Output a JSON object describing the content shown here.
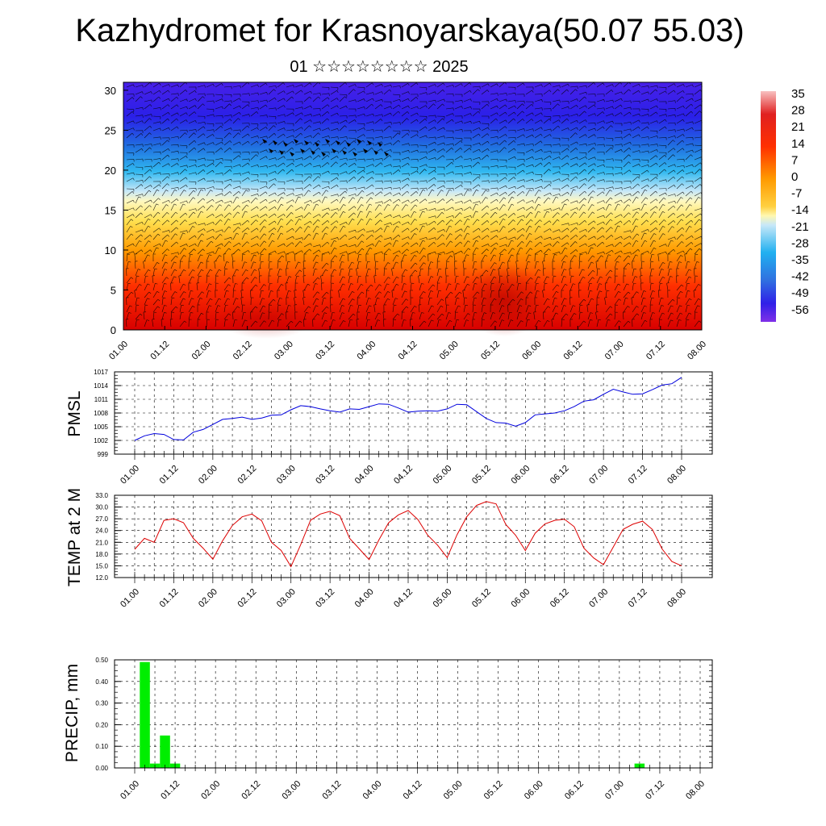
{
  "header": {
    "title": "Kazhydromet for Krasnoyarskaya(50.07 55.03)",
    "subtitle": "01 ☆☆☆☆☆☆☆☆ 2025"
  },
  "colors": {
    "pmsl_line": "#0000dd",
    "temp_line": "#dd0000",
    "precip_bar": "#00ee00",
    "grid": "#000000"
  },
  "chart_data": [
    {
      "type": "heatmap",
      "title": "",
      "x_tick_labels": [
        "01.00",
        "01.12",
        "02.00",
        "02.12",
        "03.00",
        "03.12",
        "04.00",
        "04.12",
        "05.00",
        "05.12",
        "06.00",
        "06.12",
        "07.00",
        "07.12",
        "08.00"
      ],
      "y_ticks": [
        0,
        5,
        10,
        15,
        20,
        25,
        30
      ],
      "ylim": [
        0,
        31
      ],
      "colorbar_labels": [
        "35",
        "28",
        "21",
        "14",
        "7",
        "0",
        "-7",
        "-14",
        "-21",
        "-28",
        "-35",
        "-42",
        "-49",
        "-56"
      ],
      "colorbar_range": [
        -60,
        38
      ],
      "overlay": "wind barbs"
    },
    {
      "type": "line",
      "ylabel": "PMSL",
      "x_tick_labels": [
        "01.00",
        "01.12",
        "02.00",
        "02.12",
        "03.00",
        "03.12",
        "04.00",
        "04.12",
        "05.00",
        "05.12",
        "06.00",
        "06.12",
        "07.00",
        "07.12",
        "08.00"
      ],
      "y_ticks": [
        "999",
        "1002",
        "1005",
        "1008",
        "1011",
        "1014",
        "1017"
      ],
      "ylim": [
        999,
        1017
      ],
      "x_hours": [
        0,
        3,
        6,
        9,
        12,
        15,
        18,
        21,
        24,
        27,
        30,
        33,
        36,
        39,
        42,
        45,
        48,
        51,
        54,
        57,
        60,
        63,
        66,
        69,
        72,
        75,
        78,
        81,
        84,
        87,
        90,
        93,
        96,
        99,
        102,
        105,
        108,
        111,
        114,
        117,
        120,
        123,
        126,
        129,
        132,
        135,
        138,
        141,
        144,
        147,
        150,
        153,
        156,
        159,
        162,
        165,
        168
      ],
      "values": [
        1002,
        1003,
        1003.5,
        1003.3,
        1002.2,
        1002.1,
        1003.8,
        1004.4,
        1005.5,
        1006.6,
        1006.8,
        1007.1,
        1006.6,
        1006.9,
        1007.5,
        1007.6,
        1008.7,
        1009.6,
        1009.4,
        1008.9,
        1008.5,
        1008.2,
        1008.9,
        1008.8,
        1009.4,
        1010,
        1009.9,
        1009.1,
        1008.2,
        1008.4,
        1008.5,
        1008.4,
        1008.9,
        1009.9,
        1009.8,
        1008.3,
        1006.8,
        1005.9,
        1005.8,
        1005.1,
        1005.9,
        1007.6,
        1007.8,
        1008,
        1008.5,
        1009.4,
        1010.6,
        1010.9,
        1012.1,
        1013.2,
        1012.6,
        1012.1,
        1012.2,
        1013.1,
        1014.1,
        1014.4,
        1015.8
      ]
    },
    {
      "type": "line",
      "ylabel": "TEMP at 2 M",
      "x_tick_labels": [
        "01.00",
        "01.12",
        "02.00",
        "02.12",
        "03.00",
        "03.12",
        "04.00",
        "04.12",
        "05.00",
        "05.12",
        "06.00",
        "06.12",
        "07.00",
        "07.12",
        "08.00"
      ],
      "y_ticks": [
        "12.0",
        "15.0",
        "18.0",
        "21.0",
        "24.0",
        "27.0",
        "30.0",
        "33.0"
      ],
      "ylim": [
        12,
        33
      ],
      "x_hours": [
        0,
        3,
        6,
        9,
        12,
        15,
        18,
        21,
        24,
        27,
        30,
        33,
        36,
        39,
        42,
        45,
        48,
        51,
        54,
        57,
        60,
        63,
        66,
        69,
        72,
        75,
        78,
        81,
        84,
        87,
        90,
        93,
        96,
        99,
        102,
        105,
        108,
        111,
        114,
        117,
        120,
        123,
        126,
        129,
        132,
        135,
        138,
        141,
        144,
        147,
        150,
        153,
        156,
        159,
        162,
        165,
        168
      ],
      "values": [
        19.2,
        22,
        21,
        26.6,
        27,
        26,
        22,
        19.5,
        16.7,
        21.4,
        25.3,
        27.5,
        28.2,
        26.5,
        21,
        18.9,
        14.8,
        20.4,
        26.6,
        28.2,
        28.9,
        27.8,
        22,
        19.3,
        16.6,
        21.6,
        26,
        28,
        29.1,
        26.8,
        22.8,
        20.3,
        17.1,
        22.9,
        27.5,
        30.4,
        31.4,
        30.8,
        25.5,
        22.8,
        18.9,
        23.3,
        25.7,
        26.6,
        26.9,
        25,
        19.5,
        17,
        15.3,
        19.8,
        24.3,
        25.6,
        26.4,
        24.3,
        19.3,
        16.1,
        15
      ]
    },
    {
      "type": "bar",
      "ylabel": "PRECIP, mm",
      "x_tick_labels": [
        "01.00",
        "01.12",
        "02.00",
        "02.12",
        "03.00",
        "03.12",
        "04.00",
        "04.12",
        "05.00",
        "05.12",
        "06.00",
        "06.12",
        "07.00",
        "07.12",
        "08.00"
      ],
      "y_ticks": [
        "0.00",
        "0.10",
        "0.20",
        "0.30",
        "0.40",
        "0.50"
      ],
      "ylim": [
        0,
        0.5
      ],
      "x_hours": [
        3,
        6,
        9,
        12,
        150
      ],
      "values": [
        0.49,
        0.02,
        0.15,
        0.02,
        0.02
      ]
    }
  ]
}
